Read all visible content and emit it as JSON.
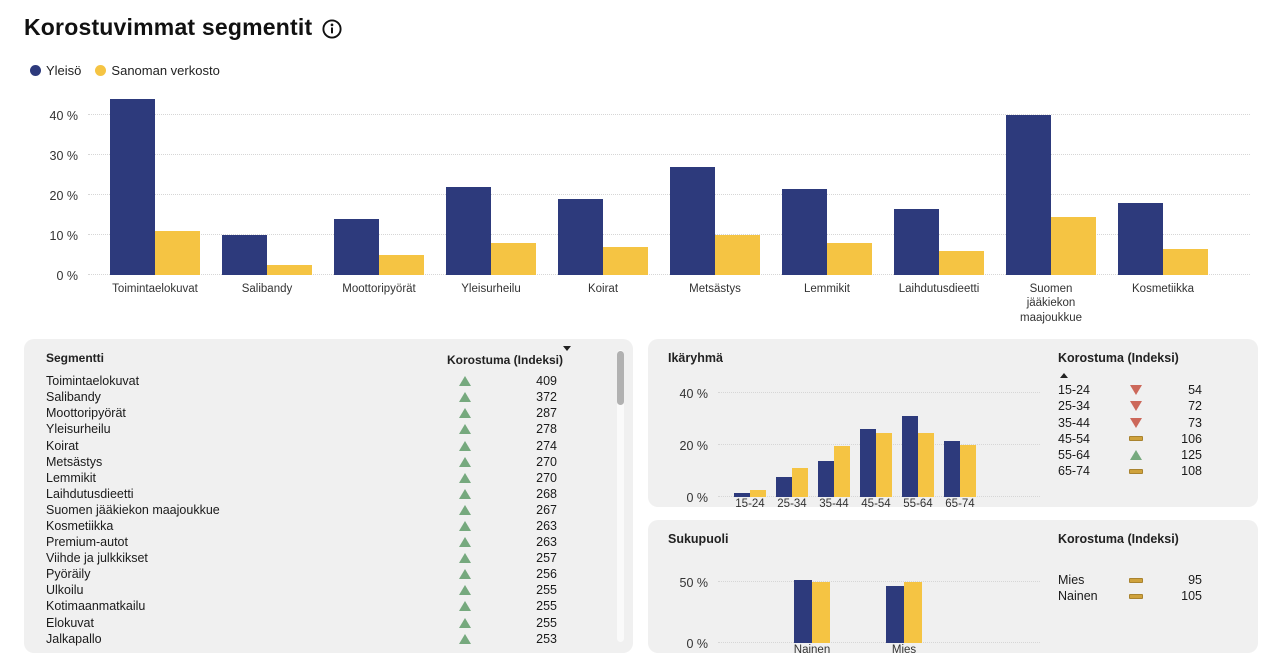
{
  "header": {
    "title": "Korostuvimmat segmentit"
  },
  "colors": {
    "audience_blue": "#2d3a7c",
    "network_yellow": "#f5c443",
    "panel_background": "#f0f0f0",
    "trend_up_green": "#76a97e",
    "trend_down_red": "#cc685a",
    "trend_flat_mustard": "#cfa23c"
  },
  "legend": {
    "items": [
      {
        "label": "Yleisö",
        "color": "#2d3a7c"
      },
      {
        "label": "Sanoman verkosto",
        "color": "#f5c443"
      }
    ]
  },
  "chart_data": [
    {
      "name": "segments",
      "type": "bar",
      "categories": [
        "Toimintaelokuvat",
        "Salibandy",
        "Moottoripyörät",
        "Yleisurheilu",
        "Koirat",
        "Metsästys",
        "Lemmikit",
        "Laihdutusdieetti",
        "Suomen jääkiekon maajoukkue",
        "Kosmetiikka"
      ],
      "series": [
        {
          "name": "Yleisö",
          "values": [
            44,
            10,
            14,
            22,
            19,
            27,
            21.5,
            16.5,
            40,
            18
          ]
        },
        {
          "name": "Sanoman verkosto",
          "values": [
            11,
            2.5,
            5,
            8,
            7,
            10,
            8,
            6,
            14.5,
            6.5
          ]
        }
      ],
      "yticks": [
        {
          "label": "40 %",
          "value": 40
        },
        {
          "label": "30 %",
          "value": 30
        },
        {
          "label": "20 %",
          "value": 20
        },
        {
          "label": "10 %",
          "value": 10
        },
        {
          "label": "0 %",
          "value": 0
        }
      ],
      "ylim": [
        0,
        45
      ],
      "unit": "%",
      "grid": "horizontal-dotted",
      "legend_position": "top-left"
    },
    {
      "name": "age",
      "title": "Ikäryhmä",
      "type": "bar",
      "categories": [
        "15-24",
        "25-34",
        "35-44",
        "45-54",
        "55-64",
        "65-74"
      ],
      "series": [
        {
          "name": "Yleisö",
          "values": [
            1.5,
            7.5,
            14,
            26,
            31,
            21.5
          ]
        },
        {
          "name": "Sanoman verkosto",
          "values": [
            2.5,
            11,
            19.5,
            24.5,
            24.5,
            20
          ]
        }
      ],
      "yticks": [
        {
          "label": "40 %",
          "value": 40
        },
        {
          "label": "20 %",
          "value": 20
        },
        {
          "label": "0 %",
          "value": 0
        }
      ],
      "ylim": [
        0,
        41
      ],
      "unit": "%",
      "grid": "horizontal-dotted"
    },
    {
      "name": "gender",
      "title": "Sukupuoli",
      "type": "bar",
      "categories": [
        "Nainen",
        "Mies"
      ],
      "series": [
        {
          "name": "Yleisö",
          "values": [
            52,
            47
          ]
        },
        {
          "name": "Sanoman verkosto",
          "values": [
            50,
            50
          ]
        }
      ],
      "yticks": [
        {
          "label": "50 %",
          "value": 50
        },
        {
          "label": "0 %",
          "value": 0
        }
      ],
      "ylim": [
        0,
        55
      ],
      "unit": "%",
      "grid": "horizontal-dotted"
    }
  ],
  "segments_table": {
    "col_segment": "Segmentti",
    "col_index": "Korostuma (Indeksi)",
    "sort_direction": "descending",
    "rows": [
      {
        "label": "Toimintaelokuvat",
        "trend": "up",
        "value": "409"
      },
      {
        "label": "Salibandy",
        "trend": "up",
        "value": "372"
      },
      {
        "label": "Moottoripyörät",
        "trend": "up",
        "value": "287"
      },
      {
        "label": "Yleisurheilu",
        "trend": "up",
        "value": "278"
      },
      {
        "label": "Koirat",
        "trend": "up",
        "value": "274"
      },
      {
        "label": "Metsästys",
        "trend": "up",
        "value": "270"
      },
      {
        "label": "Lemmikit",
        "trend": "up",
        "value": "270"
      },
      {
        "label": "Laihdutusdieetti",
        "trend": "up",
        "value": "268"
      },
      {
        "label": "Suomen jääkiekon maajoukkue",
        "trend": "up",
        "value": "267"
      },
      {
        "label": "Kosmetiikka",
        "trend": "up",
        "value": "263"
      },
      {
        "label": "Premium-autot",
        "trend": "up",
        "value": "263"
      },
      {
        "label": "Viihde ja julkkikset",
        "trend": "up",
        "value": "257"
      },
      {
        "label": "Pyöräily",
        "trend": "up",
        "value": "256"
      },
      {
        "label": "Ulkoilu",
        "trend": "up",
        "value": "255"
      },
      {
        "label": "Kotimaanmatkailu",
        "trend": "up",
        "value": "255"
      },
      {
        "label": "Elokuvat",
        "trend": "up",
        "value": "255"
      },
      {
        "label": "Jalkapallo",
        "trend": "up",
        "value": "253"
      }
    ]
  },
  "age_index": {
    "header": "Korostuma (Indeksi)",
    "sort_direction": "ascending",
    "rows": [
      {
        "label": "15-24",
        "trend": "down",
        "value": "54"
      },
      {
        "label": "25-34",
        "trend": "down",
        "value": "72"
      },
      {
        "label": "35-44",
        "trend": "down",
        "value": "73"
      },
      {
        "label": "45-54",
        "trend": "flat",
        "value": "106"
      },
      {
        "label": "55-64",
        "trend": "up",
        "value": "125"
      },
      {
        "label": "65-74",
        "trend": "flat",
        "value": "108"
      }
    ]
  },
  "gender_index": {
    "header": "Korostuma (Indeksi)",
    "rows": [
      {
        "label": "Mies",
        "trend": "flat",
        "value": "95"
      },
      {
        "label": "Nainen",
        "trend": "flat",
        "value": "105"
      }
    ]
  }
}
